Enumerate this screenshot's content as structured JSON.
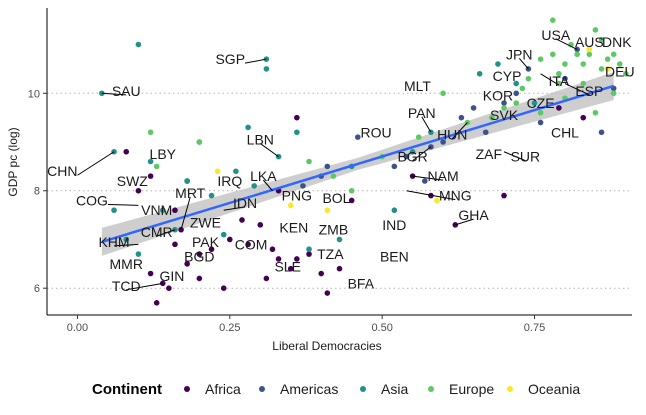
{
  "chart_data": {
    "type": "scatter",
    "xlabel": "Liberal Democracies",
    "ylabel": "GDP pc (log)",
    "xlim": [
      -0.05,
      0.91
    ],
    "ylim": [
      5.45,
      11.75
    ],
    "x_ticks": [
      0,
      0.25,
      0.5,
      0.75
    ],
    "x_tick_labels": [
      "0.00",
      "0.25",
      "0.50",
      "0.75"
    ],
    "y_ticks": [
      6,
      8,
      10
    ],
    "y_tick_labels": [
      "6",
      "8",
      "10"
    ],
    "grid": "horizontal dotted at y ticks",
    "legend": {
      "title": "Continent",
      "position": "bottom"
    },
    "series": [
      {
        "name": "Africa",
        "color": "#440154",
        "points": [
          [
            0.1,
            8.0
          ],
          [
            0.12,
            8.3
          ],
          [
            0.14,
            6.1
          ],
          [
            0.15,
            6.0
          ],
          [
            0.16,
            6.9
          ],
          [
            0.17,
            7.2
          ],
          [
            0.18,
            6.5
          ],
          [
            0.2,
            6.2
          ],
          [
            0.22,
            6.8
          ],
          [
            0.24,
            6.0
          ],
          [
            0.25,
            7.0
          ],
          [
            0.28,
            6.9
          ],
          [
            0.3,
            7.3
          ],
          [
            0.31,
            6.2
          ],
          [
            0.33,
            6.6
          ],
          [
            0.35,
            6.4
          ],
          [
            0.36,
            6.6
          ],
          [
            0.38,
            6.7
          ],
          [
            0.4,
            6.3
          ],
          [
            0.41,
            5.9
          ],
          [
            0.43,
            6.4
          ],
          [
            0.45,
            7.8
          ],
          [
            0.55,
            8.3
          ],
          [
            0.58,
            7.9
          ],
          [
            0.62,
            7.3
          ],
          [
            0.7,
            7.9
          ],
          [
            0.79,
            9.7
          ],
          [
            0.83,
            9.5
          ],
          [
            0.13,
            5.7
          ],
          [
            0.16,
            7.6
          ],
          [
            0.27,
            7.4
          ],
          [
            0.33,
            8.0
          ],
          [
            0.08,
            8.8
          ],
          [
            0.36,
            9.5
          ],
          [
            0.12,
            6.3
          ],
          [
            0.18,
            8.2
          ],
          [
            0.32,
            6.8
          ],
          [
            0.2,
            6.7
          ]
        ]
      },
      {
        "name": "Americas",
        "color": "#3b528b",
        "points": [
          [
            0.4,
            8.3
          ],
          [
            0.46,
            9.1
          ],
          [
            0.52,
            8.5
          ],
          [
            0.54,
            8.7
          ],
          [
            0.58,
            8.9
          ],
          [
            0.6,
            9.0
          ],
          [
            0.63,
            9.5
          ],
          [
            0.65,
            9.7
          ],
          [
            0.67,
            9.2
          ],
          [
            0.7,
            9.8
          ],
          [
            0.72,
            10.0
          ],
          [
            0.74,
            10.5
          ],
          [
            0.76,
            9.4
          ],
          [
            0.8,
            10.3
          ],
          [
            0.82,
            10.9
          ],
          [
            0.86,
            9.2
          ],
          [
            0.88,
            10.1
          ],
          [
            0.41,
            8.5
          ],
          [
            0.57,
            8.2
          ],
          [
            0.37,
            8.1
          ]
        ]
      },
      {
        "name": "Asia",
        "color": "#21918c",
        "points": [
          [
            0.04,
            10.0
          ],
          [
            0.06,
            8.8
          ],
          [
            0.08,
            7.0
          ],
          [
            0.1,
            11.0
          ],
          [
            0.12,
            8.6
          ],
          [
            0.14,
            7.6
          ],
          [
            0.16,
            7.2
          ],
          [
            0.18,
            8.2
          ],
          [
            0.2,
            9.0
          ],
          [
            0.22,
            7.9
          ],
          [
            0.24,
            7.1
          ],
          [
            0.26,
            8.4
          ],
          [
            0.29,
            8.1
          ],
          [
            0.31,
            10.7
          ],
          [
            0.31,
            10.5
          ],
          [
            0.33,
            8.7
          ],
          [
            0.36,
            9.2
          ],
          [
            0.38,
            6.8
          ],
          [
            0.43,
            7.0
          ],
          [
            0.45,
            8.5
          ],
          [
            0.52,
            7.6
          ],
          [
            0.55,
            8.8
          ],
          [
            0.58,
            9.2
          ],
          [
            0.66,
            10.4
          ],
          [
            0.69,
            10.6
          ],
          [
            0.72,
            10.2
          ],
          [
            0.75,
            9.8
          ],
          [
            0.06,
            7.6
          ],
          [
            0.1,
            6.7
          ],
          [
            0.28,
            9.3
          ]
        ]
      },
      {
        "name": "Europe",
        "color": "#5ec962",
        "points": [
          [
            0.12,
            9.2
          ],
          [
            0.13,
            8.5
          ],
          [
            0.2,
            9.0
          ],
          [
            0.38,
            8.6
          ],
          [
            0.42,
            8.3
          ],
          [
            0.45,
            8.0
          ],
          [
            0.5,
            8.7
          ],
          [
            0.56,
            9.1
          ],
          [
            0.6,
            10.0
          ],
          [
            0.64,
            9.4
          ],
          [
            0.68,
            9.5
          ],
          [
            0.7,
            9.7
          ],
          [
            0.73,
            10.1
          ],
          [
            0.74,
            10.3
          ],
          [
            0.76,
            10.7
          ],
          [
            0.78,
            11.5
          ],
          [
            0.79,
            10.4
          ],
          [
            0.8,
            10.6
          ],
          [
            0.81,
            11.0
          ],
          [
            0.82,
            10.8
          ],
          [
            0.83,
            10.6
          ],
          [
            0.84,
            10.9
          ],
          [
            0.85,
            11.3
          ],
          [
            0.86,
            11.1
          ],
          [
            0.87,
            10.7
          ],
          [
            0.88,
            10.8
          ],
          [
            0.89,
            10.6
          ],
          [
            0.9,
            10.4
          ],
          [
            0.88,
            10.0
          ],
          [
            0.86,
            10.5
          ],
          [
            0.84,
            10.8
          ],
          [
            0.78,
            10.8
          ],
          [
            0.8,
            9.9
          ],
          [
            0.76,
            9.6
          ],
          [
            0.72,
            9.8
          ],
          [
            0.79,
            10.2
          ],
          [
            0.83,
            10.2
          ],
          [
            0.85,
            9.6
          ]
        ]
      },
      {
        "name": "Oceania",
        "color": "#fde725",
        "points": [
          [
            0.23,
            8.4
          ],
          [
            0.35,
            7.7
          ],
          [
            0.41,
            7.6
          ],
          [
            0.59,
            7.8
          ],
          [
            0.84,
            10.9
          ],
          [
            0.87,
            10.5
          ]
        ]
      }
    ],
    "trend_line": {
      "x": [
        0.04,
        0.88
      ],
      "y": [
        6.95,
        10.15
      ],
      "color": "#3366ff",
      "ci_color": "#bdbdbd"
    },
    "annotations": [
      {
        "text": "SAU",
        "x": 0.04,
        "y": 10.0,
        "tx": 0.08,
        "ty": 10.05,
        "anchor": "middle"
      },
      {
        "text": "SGP",
        "x": 0.31,
        "y": 10.7,
        "tx": 0.275,
        "ty": 10.7,
        "anchor": "end"
      },
      {
        "text": "LBN",
        "x": 0.33,
        "y": 8.7,
        "tx": 0.3,
        "ty": 9.05,
        "anchor": "middle"
      },
      {
        "text": "LBY",
        "x": 0.12,
        "y": 8.6,
        "tx": 0.14,
        "ty": 8.75,
        "anchor": "middle"
      },
      {
        "text": "CHN",
        "x": 0.06,
        "y": 8.8,
        "tx": 0.0,
        "ty": 8.4,
        "anchor": "end"
      },
      {
        "text": "SWZ",
        "x": 0.1,
        "y": 8.0,
        "tx": 0.09,
        "ty": 8.2,
        "anchor": "middle"
      },
      {
        "text": "COG",
        "x": 0.1,
        "y": 7.7,
        "tx": 0.05,
        "ty": 7.8,
        "anchor": "end"
      },
      {
        "text": "VNM",
        "x": 0.12,
        "y": 7.6,
        "tx": 0.13,
        "ty": 7.6,
        "anchor": "middle"
      },
      {
        "text": "MRT",
        "x": 0.17,
        "y": 7.2,
        "tx": 0.185,
        "ty": 7.95,
        "anchor": "middle"
      },
      {
        "text": "IRQ",
        "x": 0.24,
        "y": 7.9,
        "tx": 0.25,
        "ty": 8.2,
        "anchor": "middle"
      },
      {
        "text": "LKA",
        "x": 0.32,
        "y": 8.0,
        "tx": 0.305,
        "ty": 8.3,
        "anchor": "middle"
      },
      {
        "text": "PNG",
        "x": 0.35,
        "y": 7.7,
        "tx": 0.36,
        "ty": 7.9,
        "anchor": "middle"
      },
      {
        "text": "BOL",
        "x": 0.42,
        "y": 8.0,
        "tx": 0.425,
        "ty": 7.85,
        "anchor": "middle"
      },
      {
        "text": "IND",
        "x": 0.52,
        "y": 7.0,
        "tx": 0.52,
        "ty": 7.3,
        "anchor": "middle"
      },
      {
        "text": "IDN",
        "x": 0.24,
        "y": 7.6,
        "tx": 0.275,
        "ty": 7.75,
        "anchor": "middle"
      },
      {
        "text": "ZWE",
        "x": 0.2,
        "y": 7.2,
        "tx": 0.21,
        "ty": 7.35,
        "anchor": "middle"
      },
      {
        "text": "CMR",
        "x": 0.16,
        "y": 7.2,
        "tx": 0.13,
        "ty": 7.15,
        "anchor": "middle"
      },
      {
        "text": "KHM",
        "x": 0.1,
        "y": 6.9,
        "tx": 0.06,
        "ty": 6.95,
        "anchor": "middle"
      },
      {
        "text": "PAK",
        "x": 0.22,
        "y": 7.0,
        "tx": 0.21,
        "ty": 6.95,
        "anchor": "middle"
      },
      {
        "text": "COM",
        "x": 0.27,
        "y": 6.9,
        "tx": 0.285,
        "ty": 6.9,
        "anchor": "middle"
      },
      {
        "text": "KEN",
        "x": 0.35,
        "y": 7.2,
        "tx": 0.355,
        "ty": 7.25,
        "anchor": "middle"
      },
      {
        "text": "ZMB",
        "x": 0.42,
        "y": 7.2,
        "tx": 0.42,
        "ty": 7.2,
        "anchor": "middle"
      },
      {
        "text": "BEN",
        "x": 0.52,
        "y": 6.6,
        "tx": 0.52,
        "ty": 6.65,
        "anchor": "middle"
      },
      {
        "text": "TZA",
        "x": 0.41,
        "y": 6.7,
        "tx": 0.415,
        "ty": 6.7,
        "anchor": "middle"
      },
      {
        "text": "SLE",
        "x": 0.34,
        "y": 6.5,
        "tx": 0.345,
        "ty": 6.45,
        "anchor": "middle"
      },
      {
        "text": "BFA",
        "x": 0.45,
        "y": 6.1,
        "tx": 0.465,
        "ty": 6.1,
        "anchor": "middle"
      },
      {
        "text": "BGD",
        "x": 0.22,
        "y": 6.8,
        "tx": 0.2,
        "ty": 6.65,
        "anchor": "middle"
      },
      {
        "text": "MMR",
        "x": 0.1,
        "y": 6.6,
        "tx": 0.08,
        "ty": 6.5,
        "anchor": "middle"
      },
      {
        "text": "GIN",
        "x": 0.15,
        "y": 6.3,
        "tx": 0.155,
        "ty": 6.25,
        "anchor": "middle"
      },
      {
        "text": "TCD",
        "x": 0.14,
        "y": 6.1,
        "tx": 0.08,
        "ty": 6.05,
        "anchor": "middle"
      },
      {
        "text": "GHA",
        "x": 0.62,
        "y": 7.3,
        "tx": 0.65,
        "ty": 7.5,
        "anchor": "middle"
      },
      {
        "text": "MNG",
        "x": 0.54,
        "y": 8.0,
        "tx": 0.62,
        "ty": 7.9,
        "anchor": "middle"
      },
      {
        "text": "NAM",
        "x": 0.55,
        "y": 8.3,
        "tx": 0.6,
        "ty": 8.3,
        "anchor": "middle"
      },
      {
        "text": "BGR",
        "x": 0.58,
        "y": 8.9,
        "tx": 0.55,
        "ty": 8.7,
        "anchor": "middle"
      },
      {
        "text": "ROU",
        "x": 0.5,
        "y": 8.9,
        "tx": 0.49,
        "ty": 9.2,
        "anchor": "middle"
      },
      {
        "text": "PAN",
        "x": 0.58,
        "y": 9.2,
        "tx": 0.565,
        "ty": 9.6,
        "anchor": "middle"
      },
      {
        "text": "HUN",
        "x": 0.64,
        "y": 9.4,
        "tx": 0.615,
        "ty": 9.15,
        "anchor": "middle"
      },
      {
        "text": "ZAF",
        "x": 0.66,
        "y": 8.9,
        "tx": 0.675,
        "ty": 8.75,
        "anchor": "middle"
      },
      {
        "text": "SUR",
        "x": 0.7,
        "y": 8.8,
        "tx": 0.735,
        "ty": 8.7,
        "anchor": "middle"
      },
      {
        "text": "SVK",
        "x": 0.68,
        "y": 9.5,
        "tx": 0.7,
        "ty": 9.55,
        "anchor": "middle"
      },
      {
        "text": "KOR",
        "x": 0.7,
        "y": 9.7,
        "tx": 0.69,
        "ty": 9.95,
        "anchor": "middle"
      },
      {
        "text": "MLT",
        "x": 0.6,
        "y": 10.0,
        "tx": 0.58,
        "ty": 10.15,
        "anchor": "end"
      },
      {
        "text": "CYP",
        "x": 0.72,
        "y": 10.2,
        "tx": 0.705,
        "ty": 10.35,
        "anchor": "middle"
      },
      {
        "text": "JPN",
        "x": 0.74,
        "y": 10.5,
        "tx": 0.725,
        "ty": 10.8,
        "anchor": "middle"
      },
      {
        "text": "CZE",
        "x": 0.74,
        "y": 9.8,
        "tx": 0.76,
        "ty": 9.8,
        "anchor": "middle"
      },
      {
        "text": "ITA",
        "x": 0.76,
        "y": 10.4,
        "tx": 0.79,
        "ty": 10.25,
        "anchor": "middle"
      },
      {
        "text": "CHL",
        "x": 0.79,
        "y": 9.5,
        "tx": 0.8,
        "ty": 9.2,
        "anchor": "middle"
      },
      {
        "text": "ESP",
        "x": 0.8,
        "y": 10.2,
        "tx": 0.84,
        "ty": 10.05,
        "anchor": "middle"
      },
      {
        "text": "USA",
        "x": 0.82,
        "y": 10.9,
        "tx": 0.785,
        "ty": 11.2,
        "anchor": "middle"
      },
      {
        "text": "AUS",
        "x": 0.84,
        "y": 10.9,
        "tx": 0.84,
        "ty": 11.05,
        "anchor": "middle"
      },
      {
        "text": "DNK",
        "x": 0.86,
        "y": 11.1,
        "tx": 0.885,
        "ty": 11.05,
        "anchor": "middle"
      },
      {
        "text": "DEU",
        "x": 0.88,
        "y": 10.6,
        "tx": 0.89,
        "ty": 10.45,
        "anchor": "middle"
      }
    ]
  }
}
